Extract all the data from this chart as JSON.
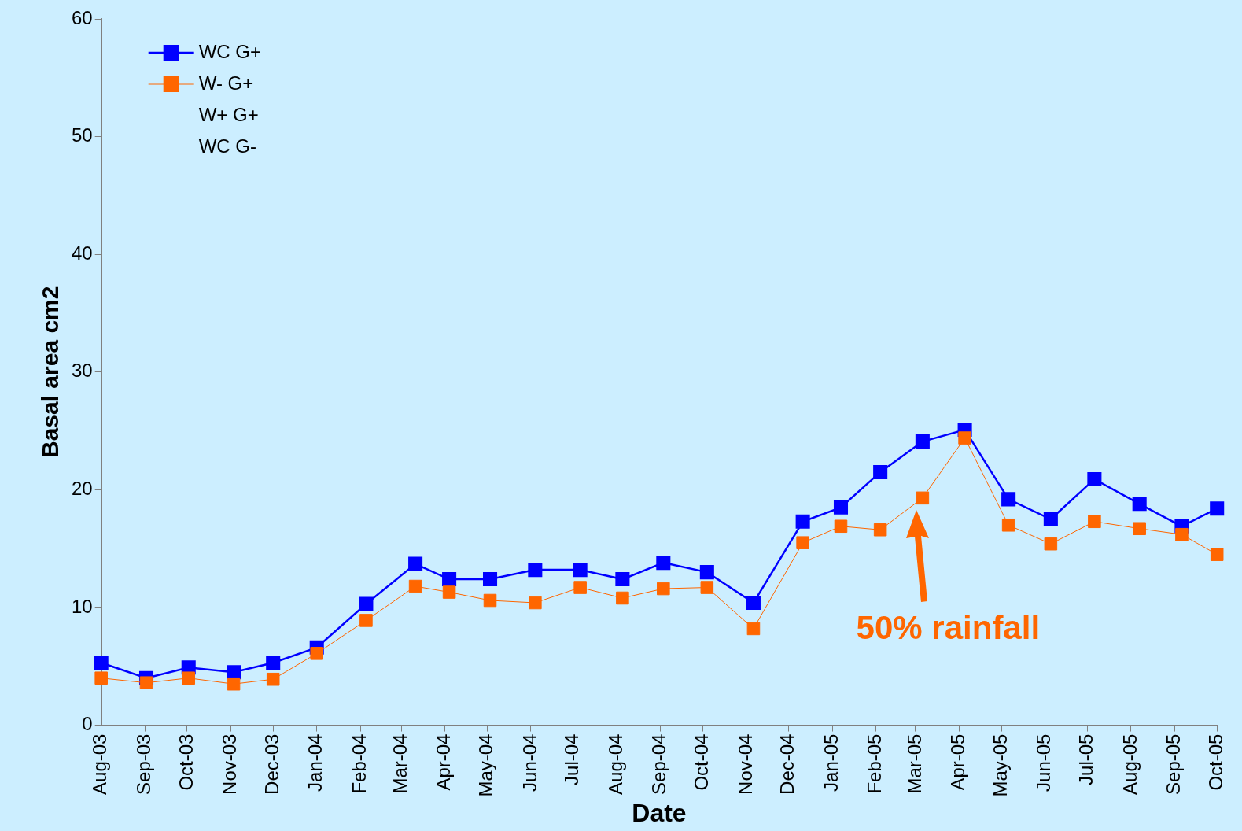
{
  "chart_data": {
    "type": "line",
    "xlabel": "Date",
    "ylabel": "Basal area cm2",
    "xlim": [
      "2003-08-01",
      "2005-10-01"
    ],
    "xticks": [
      {
        "value": "2003-08-01",
        "label": "Aug-03"
      },
      {
        "value": "2003-09-01",
        "label": "Sep-03"
      },
      {
        "value": "2003-10-01",
        "label": "Oct-03"
      },
      {
        "value": "2003-11-01",
        "label": "Nov-03"
      },
      {
        "value": "2003-12-01",
        "label": "Dec-03"
      },
      {
        "value": "2004-01-01",
        "label": "Jan-04"
      },
      {
        "value": "2004-02-01",
        "label": "Feb-04"
      },
      {
        "value": "2004-03-01",
        "label": "Mar-04"
      },
      {
        "value": "2004-04-01",
        "label": "Apr-04"
      },
      {
        "value": "2004-05-01",
        "label": "May-04"
      },
      {
        "value": "2004-06-01",
        "label": "Jun-04"
      },
      {
        "value": "2004-07-01",
        "label": "Jul-04"
      },
      {
        "value": "2004-08-01",
        "label": "Aug-04"
      },
      {
        "value": "2004-09-01",
        "label": "Sep-04"
      },
      {
        "value": "2004-10-01",
        "label": "Oct-04"
      },
      {
        "value": "2004-11-01",
        "label": "Nov-04"
      },
      {
        "value": "2004-12-01",
        "label": "Dec-04"
      },
      {
        "value": "2005-01-01",
        "label": "Jan-05"
      },
      {
        "value": "2005-02-01",
        "label": "Feb-05"
      },
      {
        "value": "2005-03-01",
        "label": "Mar-05"
      },
      {
        "value": "2005-04-01",
        "label": "Apr-05"
      },
      {
        "value": "2005-05-01",
        "label": "May-05"
      },
      {
        "value": "2005-06-01",
        "label": "Jun-05"
      },
      {
        "value": "2005-07-01",
        "label": "Jul-05"
      },
      {
        "value": "2005-08-01",
        "label": "Aug-05"
      },
      {
        "value": "2005-09-01",
        "label": "Sep-05"
      },
      {
        "value": "2005-10-01",
        "label": "Oct-05"
      }
    ],
    "ylim": [
      0,
      60
    ],
    "yticks": [
      0,
      10,
      20,
      30,
      40,
      50,
      60
    ],
    "grid": false,
    "legend": "top left",
    "marker": "square",
    "x": [
      "2003-08-01",
      "2003-09-02",
      "2003-10-02",
      "2003-11-03",
      "2003-12-01",
      "2004-01-01",
      "2004-02-05",
      "2004-03-11",
      "2004-04-04",
      "2004-05-03",
      "2004-06-04",
      "2004-07-06",
      "2004-08-05",
      "2004-09-03",
      "2004-10-04",
      "2004-11-06",
      "2004-12-11",
      "2005-01-07",
      "2005-02-04",
      "2005-03-06",
      "2005-04-05",
      "2005-05-06",
      "2005-06-05",
      "2005-07-06",
      "2005-08-07",
      "2005-09-06",
      "2005-10-01"
    ],
    "series": [
      {
        "name": "WC G+",
        "color": "#0000ff",
        "values": [
          5.3,
          4.0,
          4.9,
          4.5,
          5.3,
          6.6,
          10.3,
          13.7,
          12.4,
          12.4,
          13.2,
          13.2,
          12.4,
          13.8,
          13.0,
          10.4,
          17.3,
          18.5,
          21.5,
          24.1,
          25.1,
          19.2,
          17.5,
          20.9,
          18.8,
          16.9,
          18.4
        ]
      },
      {
        "name": "W- G+",
        "color": "#ff6600",
        "values": [
          4.0,
          3.6,
          4.0,
          3.5,
          3.9,
          6.1,
          8.9,
          11.8,
          11.3,
          10.6,
          10.4,
          11.7,
          10.8,
          11.6,
          11.7,
          8.2,
          15.5,
          16.9,
          16.6,
          19.3,
          24.4,
          17.0,
          15.4,
          17.3,
          16.7,
          16.2,
          14.5
        ]
      },
      {
        "name": "W+ G+",
        "values": [
          null,
          null,
          null,
          null,
          null,
          null,
          null,
          null,
          null,
          null,
          null,
          null,
          null,
          null,
          null,
          null,
          null,
          null,
          null,
          null,
          null,
          null,
          null,
          null,
          null,
          null,
          null
        ]
      },
      {
        "name": "WC G-",
        "values": [
          null,
          null,
          null,
          null,
          null,
          null,
          null,
          null,
          null,
          null,
          null,
          null,
          null,
          null,
          null,
          null,
          null,
          null,
          null,
          null,
          null,
          null,
          null,
          null,
          null,
          null,
          null
        ]
      }
    ],
    "annotations": [
      "50% rainfall"
    ]
  }
}
